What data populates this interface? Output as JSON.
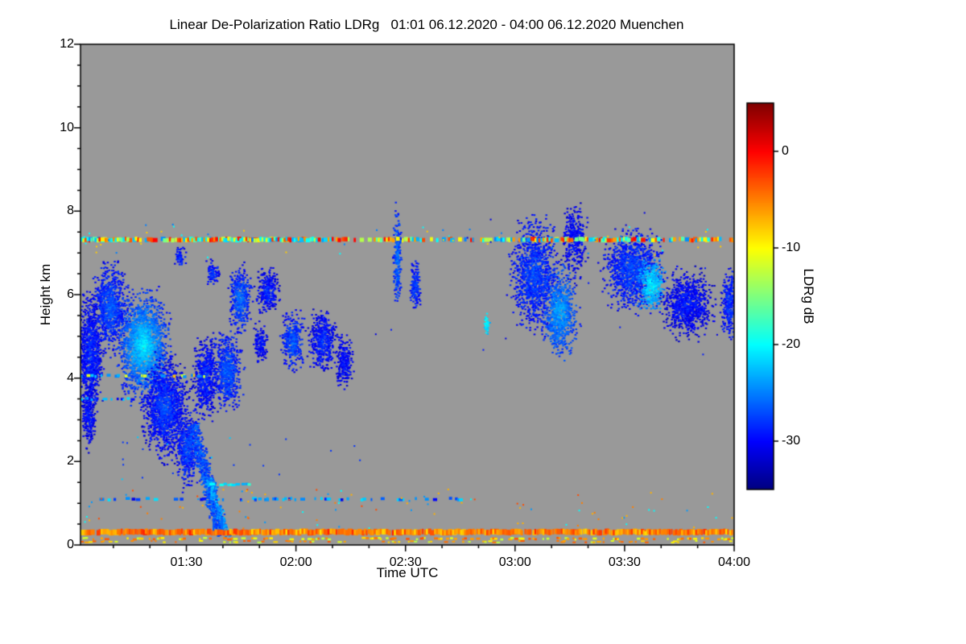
{
  "chart_data": {
    "type": "heatmap",
    "title": "Linear De-Polarization Ratio LDRg   01:01 06.12.2020 - 04:00 06.12.2020 Muenchen",
    "xlabel": "Time UTC",
    "ylabel": "Height km",
    "x_range_min": [
      61,
      240
    ],
    "x_ticks": [
      {
        "t": 90,
        "label": "01:30"
      },
      {
        "t": 120,
        "label": "02:00"
      },
      {
        "t": 150,
        "label": "02:30"
      },
      {
        "t": 180,
        "label": "03:00"
      },
      {
        "t": 210,
        "label": "03:30"
      },
      {
        "t": 240,
        "label": "04:00"
      }
    ],
    "x_minor_step_min": 10,
    "y_range_km": [
      0,
      12
    ],
    "y_ticks": [
      0,
      2,
      4,
      6,
      8,
      10,
      12
    ],
    "y_minor_step_km": 0.5,
    "no_signal_color": "#999999",
    "colorbar": {
      "label": "LDRg dB",
      "min": -35,
      "max": 5,
      "ticks": [
        0,
        -10,
        -20,
        -30
      ],
      "colormap": "jet"
    },
    "palettes": {
      "mixed": [
        -22,
        -20,
        -16,
        -10,
        -6,
        -3,
        -24,
        -13,
        -1
      ],
      "mixed2": [
        -22,
        -12,
        -7,
        -25
      ],
      "mixedcool": [
        -22,
        -18,
        -26,
        -10
      ],
      "warm": [
        -3,
        -4,
        -5,
        -6,
        -7,
        -8,
        -2,
        -5,
        -4
      ],
      "warm2": [
        -6,
        -9,
        -4,
        -12
      ],
      "cool": [
        -27,
        -24,
        -30,
        -22
      ],
      "cyan": [
        -21,
        -23,
        -19
      ]
    },
    "features": {
      "hlines": [
        {
          "h": 7.32,
          "th": 0.1,
          "t0": 61,
          "t1": 240,
          "d": 0.55,
          "pal": "mixed"
        },
        {
          "h": 7.32,
          "th": 0.1,
          "t0": 88,
          "t1": 126,
          "d": 0.95,
          "pal": "mixed"
        },
        {
          "h": 7.32,
          "th": 0.1,
          "t0": 61,
          "t1": 76,
          "d": 0.9,
          "pal": "mixed"
        },
        {
          "h": 7.32,
          "th": 0.1,
          "t0": 182,
          "t1": 214,
          "d": 0.8,
          "pal": "mixed"
        },
        {
          "h": 0.31,
          "th": 0.13,
          "t0": 61,
          "t1": 240,
          "d": 0.97,
          "pal": "warm"
        },
        {
          "h": 0.15,
          "th": 0.05,
          "t0": 61,
          "t1": 240,
          "d": 0.35,
          "pal": "warm2"
        },
        {
          "h": 0.08,
          "th": 0.04,
          "t0": 61,
          "t1": 240,
          "d": 0.25,
          "pal": "warm2"
        },
        {
          "h": 1.1,
          "th": 0.07,
          "t0": 64,
          "t1": 165,
          "d": 0.28,
          "pal": "cool"
        },
        {
          "h": 1.45,
          "th": 0.06,
          "t0": 93,
          "t1": 112,
          "d": 0.35,
          "pal": "cyan"
        },
        {
          "h": 4.05,
          "th": 0.07,
          "t0": 61,
          "t1": 95,
          "d": 0.35,
          "pal": "mixed2"
        },
        {
          "h": 3.5,
          "th": 0.06,
          "t0": 61,
          "t1": 76,
          "d": 0.4,
          "pal": "cool"
        },
        {
          "h": 0.5,
          "th": 0.3,
          "t0": 95,
          "t1": 102,
          "d": 0.2,
          "pal": "mixedcool"
        }
      ],
      "clouds": [
        {
          "t": 63.5,
          "h": 4.6,
          "rt": 4.5,
          "rh": 1.8,
          "v": -31,
          "core": 3,
          "d": 0.6
        },
        {
          "t": 63,
          "h": 3.1,
          "rt": 2.5,
          "rh": 0.9,
          "v": -31,
          "core": 2,
          "d": 0.5
        },
        {
          "t": 69,
          "h": 5.7,
          "rt": 6,
          "rh": 1.3,
          "v": -30,
          "core": 4,
          "d": 0.55
        },
        {
          "t": 78,
          "h": 4.8,
          "rt": 9,
          "rh": 1.6,
          "v": -29,
          "core": 9,
          "d": 0.65
        },
        {
          "t": 84,
          "h": 3.3,
          "rt": 8,
          "rh": 1.5,
          "v": -31,
          "core": 4,
          "d": 0.6
        },
        {
          "t": 90,
          "h": 2.3,
          "rt": 4,
          "rh": 1.1,
          "v": -30,
          "core": 3,
          "d": 0.55
        },
        {
          "t": 88,
          "h": 6.9,
          "rt": 2,
          "rh": 0.35,
          "v": -30,
          "core": 2,
          "d": 0.4
        },
        {
          "t": 95,
          "h": 4.0,
          "rt": 4.5,
          "rh": 1.3,
          "v": -31,
          "core": 3,
          "d": 0.5
        },
        {
          "t": 97,
          "h": 6.55,
          "rt": 2.5,
          "rh": 0.4,
          "v": -30,
          "core": 2,
          "d": 0.4
        },
        {
          "t": 101,
          "h": 4.2,
          "rt": 5,
          "rh": 1.2,
          "v": -30,
          "core": 4,
          "d": 0.55
        },
        {
          "t": 104.5,
          "h": 5.9,
          "rt": 4,
          "rh": 1.0,
          "v": -30,
          "core": 5,
          "d": 0.5
        },
        {
          "t": 110,
          "h": 4.85,
          "rt": 2.5,
          "rh": 0.6,
          "v": -31,
          "core": 2,
          "d": 0.45
        },
        {
          "t": 112,
          "h": 6.1,
          "rt": 4,
          "rh": 0.7,
          "v": -31,
          "core": 3,
          "d": 0.5
        },
        {
          "t": 119,
          "h": 4.9,
          "rt": 4,
          "rh": 0.9,
          "v": -30,
          "core": 4,
          "d": 0.5
        },
        {
          "t": 127,
          "h": 4.9,
          "rt": 5,
          "rh": 1.0,
          "v": -31,
          "core": 3,
          "d": 0.45
        },
        {
          "t": 133,
          "h": 4.4,
          "rt": 3,
          "rh": 0.9,
          "v": -31,
          "core": 2,
          "d": 0.45
        },
        {
          "t": 147.5,
          "h": 6.9,
          "rt": 1.4,
          "rh": 1.5,
          "v": -29,
          "core": 4,
          "d": 0.55
        },
        {
          "t": 152.5,
          "h": 6.2,
          "rt": 2,
          "rh": 0.8,
          "v": -30,
          "core": 3,
          "d": 0.5
        },
        {
          "t": 172,
          "h": 5.3,
          "rt": 1,
          "rh": 0.35,
          "v": -22,
          "core": 2,
          "d": 0.6
        },
        {
          "t": 185,
          "h": 6.5,
          "rt": 8,
          "rh": 1.7,
          "v": -30,
          "core": 3,
          "d": 0.45
        },
        {
          "t": 192,
          "h": 5.6,
          "rt": 6,
          "rh": 1.3,
          "v": -28,
          "core": 5,
          "d": 0.55
        },
        {
          "t": 196,
          "h": 7.3,
          "rt": 4.5,
          "rh": 1.1,
          "v": -31,
          "core": 2,
          "d": 0.35
        },
        {
          "t": 212,
          "h": 6.6,
          "rt": 10,
          "rh": 1.2,
          "v": -30,
          "core": 3,
          "d": 0.5
        },
        {
          "t": 217,
          "h": 6.25,
          "rt": 5,
          "rh": 0.8,
          "v": -25,
          "core": 5,
          "d": 0.55
        },
        {
          "t": 227,
          "h": 5.8,
          "rt": 9,
          "rh": 1.0,
          "v": -31,
          "core": 2,
          "d": 0.5
        },
        {
          "t": 238.5,
          "h": 5.8,
          "rt": 3,
          "rh": 1.0,
          "v": -30,
          "core": 2,
          "d": 0.5
        }
      ],
      "streaks": [
        {
          "t0": 91.5,
          "h0": 2.9,
          "t1": 99.5,
          "h1": 0.25,
          "w": 0.22,
          "v": -27,
          "d": 0.7
        },
        {
          "t0": 96,
          "h0": 1.6,
          "t1": 101,
          "h1": 0.2,
          "w": 0.12,
          "v": -24,
          "d": 0.5
        }
      ],
      "noise": [
        {
          "n": 90,
          "t0": 61,
          "t1": 240,
          "h0": 0.35,
          "h1": 1.35,
          "vals": [
            -5,
            -7,
            -20,
            -24,
            -3
          ]
        },
        {
          "n": 50,
          "t0": 61,
          "t1": 240,
          "h0": 6.9,
          "h1": 7.7,
          "vals": [
            -20,
            -8,
            -25
          ]
        },
        {
          "n": 25,
          "t0": 140,
          "t1": 240,
          "h0": 4.5,
          "h1": 8.0,
          "vals": [
            -29,
            -31
          ]
        },
        {
          "n": 20,
          "t0": 61,
          "t1": 140,
          "h0": 1.5,
          "h1": 2.6,
          "vals": [
            -28,
            -22
          ]
        }
      ]
    }
  }
}
